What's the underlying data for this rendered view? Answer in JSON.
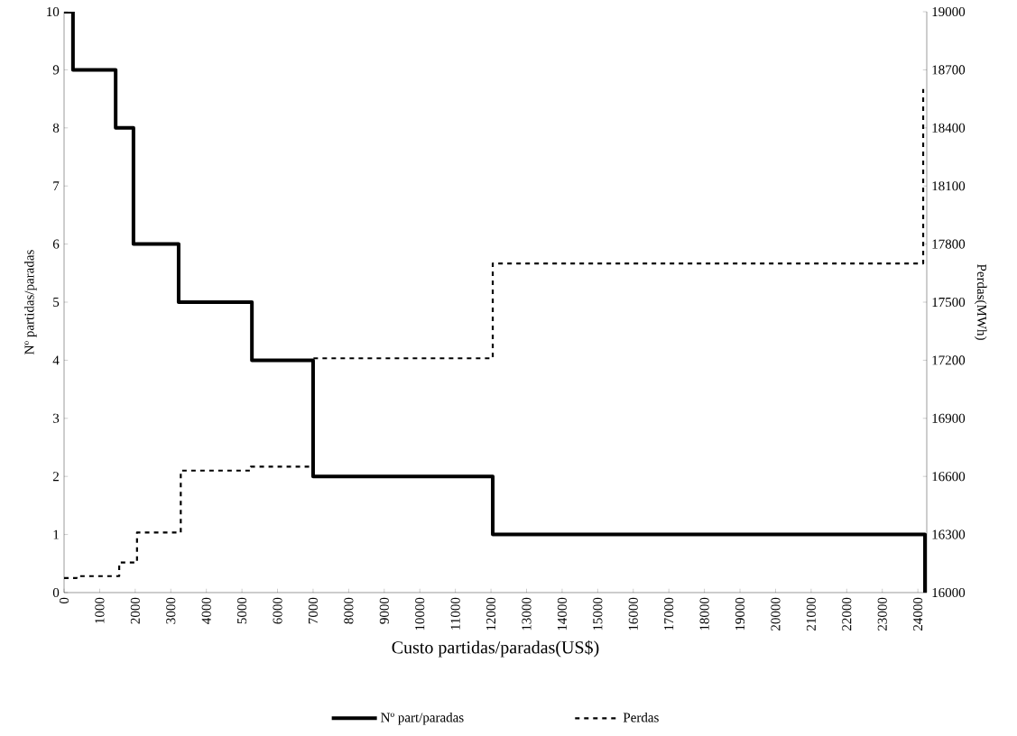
{
  "chart_data": {
    "type": "step",
    "xlabel": "Custo partidas/paradas(US$)",
    "ylabel": "Nº partidas/paradas",
    "y2label": "Perdas(MWh)",
    "xlim": [
      0,
      24250
    ],
    "xticks": [
      0,
      1000,
      2000,
      3000,
      4000,
      5000,
      6000,
      7000,
      8000,
      9000,
      10000,
      11000,
      12000,
      13000,
      14000,
      15000,
      16000,
      17000,
      18000,
      19000,
      20000,
      21000,
      22000,
      23000,
      24000
    ],
    "ylim": [
      0,
      10
    ],
    "yticks": [
      0,
      1,
      2,
      3,
      4,
      5,
      6,
      7,
      8,
      9,
      10
    ],
    "y2lim": [
      16000,
      19000
    ],
    "y2ticks": [
      16000,
      16300,
      16600,
      16900,
      17200,
      17500,
      17800,
      18100,
      18400,
      18700,
      19000
    ],
    "legend": "bottom",
    "grid": false,
    "series": [
      {
        "name": "Nº part/paradas",
        "color": "#000000",
        "line_style": "solid",
        "x": [
          0,
          250,
          1450,
          1950,
          3220,
          5280,
          7000,
          12050,
          24200
        ],
        "values": [
          10,
          9,
          8,
          6,
          5,
          4,
          2,
          1,
          0
        ]
      },
      {
        "name": "Perdas",
        "color": "#000000",
        "line_style": "dashed",
        "axis": "y2",
        "x": [
          0,
          350,
          1550,
          2050,
          3280,
          5250,
          7000,
          12050,
          24150
        ],
        "values": [
          16075,
          16085,
          16155,
          16310,
          16630,
          16650,
          17210,
          17700,
          18600
        ]
      }
    ]
  }
}
